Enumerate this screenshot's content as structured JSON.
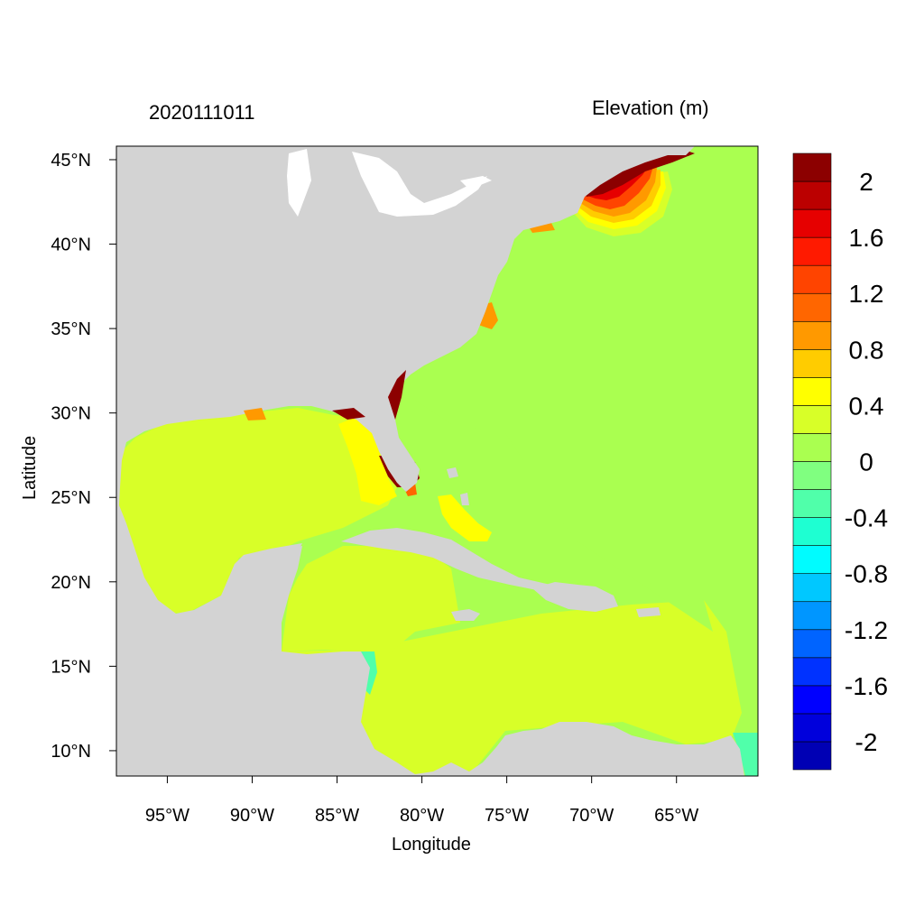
{
  "chart_data": {
    "type": "heatmap",
    "title_left": "2020111011",
    "title_right": "Elevation (m)",
    "xlabel": "Longitude",
    "ylabel": "Latitude",
    "x_ticks": [
      {
        "value": -95,
        "label": "95°W"
      },
      {
        "value": -90,
        "label": "90°W"
      },
      {
        "value": -85,
        "label": "85°W"
      },
      {
        "value": -80,
        "label": "80°W"
      },
      {
        "value": -75,
        "label": "75°W"
      },
      {
        "value": -70,
        "label": "70°W"
      },
      {
        "value": -65,
        "label": "65°W"
      }
    ],
    "y_ticks": [
      {
        "value": 45,
        "label": "45°N"
      },
      {
        "value": 40,
        "label": "40°N"
      },
      {
        "value": 35,
        "label": "35°N"
      },
      {
        "value": 30,
        "label": "30°N"
      },
      {
        "value": 25,
        "label": "25°N"
      },
      {
        "value": 20,
        "label": "20°N"
      },
      {
        "value": 15,
        "label": "15°N"
      },
      {
        "value": 10,
        "label": "10°N"
      }
    ],
    "xlim": [
      -98,
      -60.2
    ],
    "ylim": [
      8.5,
      45.8
    ],
    "land_color": "#d3d3d3",
    "colorbar": {
      "levels": [
        -2.2,
        -2.0,
        -1.8,
        -1.6,
        -1.4,
        -1.2,
        -1.0,
        -0.8,
        -0.6,
        -0.4,
        -0.2,
        0.0,
        0.2,
        0.4,
        0.6,
        0.8,
        1.0,
        1.2,
        1.4,
        1.6,
        1.8,
        2.0,
        2.2
      ],
      "colors": [
        "#0000b4",
        "#0000dc",
        "#0000ff",
        "#0032ff",
        "#0064ff",
        "#0096ff",
        "#00c8ff",
        "#00fcff",
        "#1effd2",
        "#50ffaa",
        "#80ff80",
        "#aaff50",
        "#d8ff28",
        "#ffff00",
        "#ffcc00",
        "#ff9900",
        "#ff6600",
        "#ff4400",
        "#ff1a00",
        "#e60000",
        "#bb0000",
        "#8c0000"
      ],
      "tick_labels": [
        {
          "value": 2.0,
          "label": "2"
        },
        {
          "value": 1.6,
          "label": "1.6"
        },
        {
          "value": 1.2,
          "label": "1.2"
        },
        {
          "value": 0.8,
          "label": "0.8"
        },
        {
          "value": 0.4,
          "label": "0.4"
        },
        {
          "value": 0.0,
          "label": "0"
        },
        {
          "value": -0.4,
          "label": "-0.4"
        },
        {
          "value": -0.8,
          "label": "-0.8"
        },
        {
          "value": -1.2,
          "label": "-1.2"
        },
        {
          "value": -1.6,
          "label": "-1.6"
        },
        {
          "value": -2.0,
          "label": "-2"
        }
      ]
    },
    "regions": [
      {
        "name": "open-atlantic",
        "value": 0.1
      },
      {
        "name": "gulf-of-mexico",
        "value": 0.3
      },
      {
        "name": "caribbean-sea",
        "value": 0.2
      },
      {
        "name": "gulf-of-maine",
        "value": 2.1
      },
      {
        "name": "south-florida-coast",
        "value": 2.1
      },
      {
        "name": "west-florida-shelf",
        "value": 0.5
      },
      {
        "name": "bahamas-banks",
        "value": 0.5
      },
      {
        "name": "nicaragua-coast",
        "value": -0.3
      },
      {
        "name": "lesser-antilles-east",
        "value": -0.3
      }
    ]
  }
}
